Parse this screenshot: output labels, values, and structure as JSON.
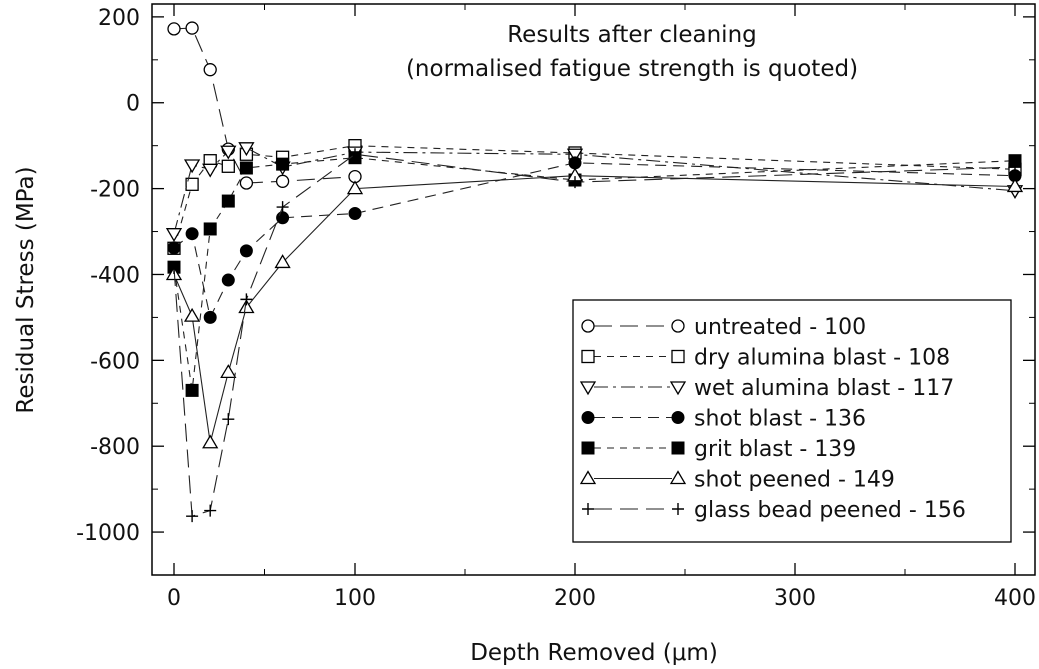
{
  "chart_data": {
    "type": "line",
    "title": "Results after cleaning",
    "subtitle": "(normalised fatigue strength is quoted)",
    "xlabel": "Depth Removed (μm)",
    "ylabel": "Residual Stress (MPa)",
    "xlim": [
      -10,
      410
    ],
    "ylim": [
      -1100,
      230
    ],
    "x_break": {
      "from": 100,
      "to": 200,
      "note": "x axis is compressed beyond 100"
    },
    "xticks": [
      0,
      100,
      200,
      300,
      400
    ],
    "yticks": [
      200,
      0,
      -200,
      -400,
      -600,
      -800,
      -1000
    ],
    "grid": false,
    "legend_position": "bottom-right",
    "series": [
      {
        "name": "untreated - 100",
        "marker": "open-circle",
        "dash": "long-dash",
        "x": [
          0,
          10,
          20,
          30,
          40,
          60,
          100
        ],
        "y": [
          172,
          174,
          77,
          -108,
          -187,
          -183,
          -172
        ]
      },
      {
        "name": "dry alumina blast - 108",
        "marker": "open-square",
        "dash": "short-dash",
        "x": [
          0,
          10,
          20,
          30,
          40,
          60,
          100,
          200,
          400
        ],
        "y": [
          -339,
          -190,
          -135,
          -148,
          -120,
          -127,
          -100,
          -117,
          -155
        ]
      },
      {
        "name": "wet alumina blast - 117",
        "marker": "open-triangle-down",
        "dash": "dash-dot",
        "x": [
          0,
          10,
          20,
          30,
          40,
          60,
          100,
          200,
          400
        ],
        "y": [
          -305,
          -145,
          -155,
          -113,
          -105,
          -150,
          -115,
          -120,
          -205
        ]
      },
      {
        "name": "shot blast - 136",
        "marker": "filled-circle",
        "dash": "dash",
        "x": [
          0,
          10,
          20,
          30,
          40,
          60,
          100,
          200,
          400
        ],
        "y": [
          -338,
          -305,
          -500,
          -413,
          -345,
          -268,
          -258,
          -140,
          -170
        ]
      },
      {
        "name": "grit blast - 139",
        "marker": "filled-square",
        "dash": "short-dash",
        "x": [
          0,
          10,
          20,
          30,
          40,
          60,
          100,
          200,
          400
        ],
        "y": [
          -383,
          -670,
          -294,
          -229,
          -152,
          -143,
          -128,
          -180,
          -135
        ]
      },
      {
        "name": "shot peened - 149",
        "marker": "open-triangle-up",
        "dash": "solid",
        "x": [
          0,
          10,
          20,
          30,
          40,
          60,
          100,
          200,
          400
        ],
        "y": [
          -400,
          -497,
          -792,
          -628,
          -477,
          -372,
          -200,
          -170,
          -195
        ]
      },
      {
        "name": "glass bead peened - 156",
        "marker": "plus",
        "dash": "long-dash",
        "x": [
          0,
          10,
          20,
          30,
          40,
          60,
          100,
          200,
          400
        ],
        "y": [
          -385,
          -963,
          -950,
          -737,
          -458,
          -243,
          -120,
          -185,
          -150
        ]
      }
    ]
  }
}
